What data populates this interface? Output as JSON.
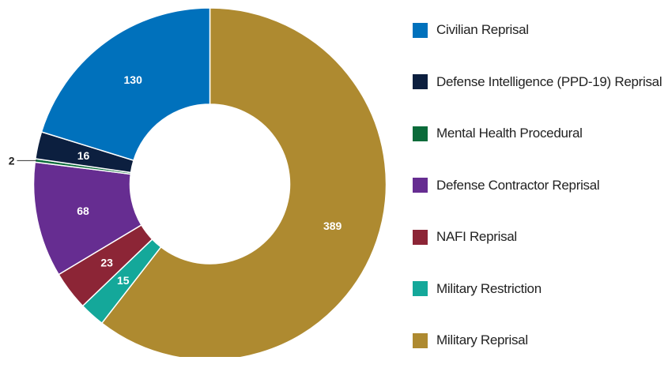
{
  "chart_data": {
    "type": "pie",
    "donut": true,
    "title": "",
    "legend_position": "right",
    "slices": [
      {
        "label": "Military Reprisal",
        "value": 389,
        "color": "#AE8A30"
      },
      {
        "label": "Military Restriction",
        "value": 15,
        "color": "#14A89A"
      },
      {
        "label": "NAFI Reprisal",
        "value": 23,
        "color": "#8C2536"
      },
      {
        "label": "Defense Contractor Reprisal",
        "value": 68,
        "color": "#662D91"
      },
      {
        "label": "Mental Health Procedural",
        "value": 2,
        "color": "#0B6B3A"
      },
      {
        "label": "Defense Intelligence (PPD-19) Reprisal",
        "value": 16,
        "color": "#0C1F3F"
      },
      {
        "label": "Civilian Reprisal",
        "value": 130,
        "color": "#0071BC"
      }
    ],
    "legend_order": [
      "Civilian Reprisal",
      "Defense Intelligence (PPD-19) Reprisal",
      "Mental Health Procedural",
      "Defense Contractor Reprisal",
      "NAFI Reprisal",
      "Military Restriction",
      "Military Reprisal"
    ]
  }
}
